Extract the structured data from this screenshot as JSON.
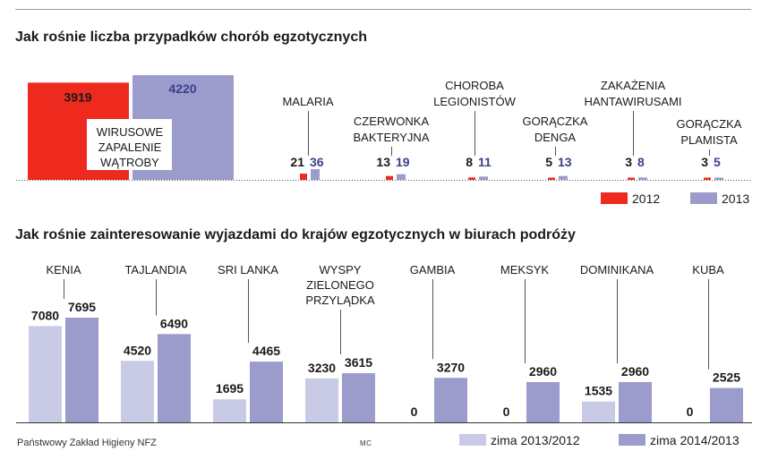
{
  "colors": {
    "y2012": "#ee2a1e",
    "y2013": "#9b9bcc",
    "winter_2013_2012": "#c9cbe6",
    "winter_2014_2013": "#9b9bcc",
    "value_text_2013": "#3b3f8c",
    "dark_text": "#1a1a1a"
  },
  "chart_data": [
    {
      "type": "bar",
      "title": "Jak rośnie liczba przypadków chorób egzotycznych",
      "categories": [
        "WIRUSOWE ZAPALENIE WĄTROBY",
        "MALARIA",
        "CZERWONKA BAKTERYJNA",
        "CHOROBA LEGIONISTÓW",
        "GORĄCZKA DENGA",
        "ZAKAŻENIA HANTAWIRUSAMI",
        "GORĄCZKA PLAMISTA"
      ],
      "category_lines": [
        [
          "WIRUSOWE",
          "ZAPALENIE",
          "WĄTROBY"
        ],
        [
          "MALARIA"
        ],
        [
          "CZERWONKA",
          "BAKTERYJNA"
        ],
        [
          "CHOROBA",
          "LEGIONISTÓW"
        ],
        [
          "GORĄCZKA",
          "DENGA"
        ],
        [
          "ZAKAŻENIA",
          "HANTAWIRUSAMI"
        ],
        [
          "GORĄCZKA",
          "PLAMISTA"
        ]
      ],
      "series": [
        {
          "name": "2012",
          "values": [
            3919,
            21,
            13,
            8,
            5,
            3,
            3
          ]
        },
        {
          "name": "2013",
          "values": [
            4220,
            36,
            19,
            11,
            13,
            8,
            5
          ]
        }
      ],
      "legend": [
        "2012",
        "2013"
      ],
      "legend_position": "bottom-right"
    },
    {
      "type": "bar",
      "title": "Jak rośnie zainteresowanie wyjazdami do krajów egzotycznych w biurach podróży",
      "categories": [
        "KENIA",
        "TAJLANDIA",
        "SRI LANKA",
        "WYSPY ZIELONEGO PRZYLĄDKA",
        "GAMBIA",
        "MEKSYK",
        "DOMINIKANA",
        "KUBA"
      ],
      "category_lines": [
        [
          "KENIA"
        ],
        [
          "TAJLANDIA"
        ],
        [
          "SRI LANKA"
        ],
        [
          "WYSPY",
          "ZIELONEGO",
          "PRZYLĄDKA"
        ],
        [
          "GAMBIA"
        ],
        [
          "MEKSYK"
        ],
        [
          "DOMINIKANA"
        ],
        [
          "KUBA"
        ]
      ],
      "series": [
        {
          "name": "zima 2013/2012",
          "values": [
            7080,
            4520,
            1695,
            3230,
            0,
            0,
            1535,
            0
          ]
        },
        {
          "name": "zima 2014/2013",
          "values": [
            7695,
            6490,
            4465,
            3615,
            3270,
            2960,
            2960,
            2525
          ]
        }
      ],
      "legend": [
        "zima 2013/2012",
        "zima 2014/2013"
      ],
      "legend_position": "bottom-right"
    }
  ],
  "footer": {
    "source": "Państwowy Zakład Higieny NFZ",
    "author": "MC"
  }
}
